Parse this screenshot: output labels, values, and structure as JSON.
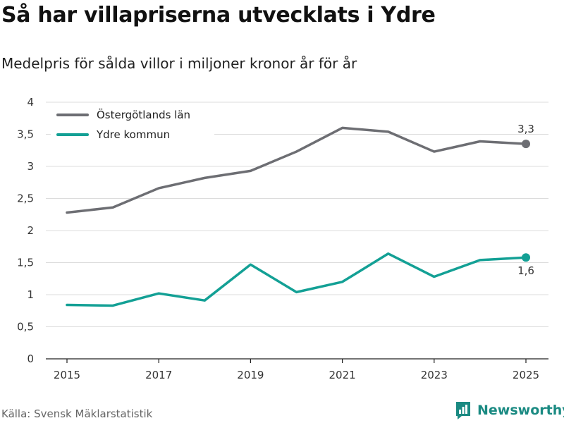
{
  "header": {
    "title": "Så har villapriserna utvecklats i Ydre",
    "subtitle": "Medelpris för sålda villor i miljoner kronor år för år"
  },
  "footer": {
    "source": "Källa: Svensk Mäklarstatistik",
    "brand": "Newsworthy",
    "brand_icon": "newsworthy-logo-icon",
    "brand_color": "#1a8a82"
  },
  "chart_data": {
    "type": "line",
    "title": "Så har villapriserna utvecklats i Ydre",
    "subtitle": "Medelpris för sålda villor i miljoner kronor år för år",
    "xlabel": "",
    "ylabel": "",
    "x": [
      2015,
      2016,
      2017,
      2018,
      2019,
      2020,
      2021,
      2022,
      2023,
      2024,
      2025
    ],
    "x_ticks": [
      "2015",
      "2017",
      "2019",
      "2021",
      "2023",
      "2025"
    ],
    "ylim": [
      0,
      4
    ],
    "y_ticks": [
      "0",
      "0,5",
      "1",
      "1,5",
      "2",
      "2,5",
      "3",
      "3,5",
      "4"
    ],
    "grid": true,
    "legend_position": "top-left",
    "series": [
      {
        "name": "Östergötlands län",
        "color": "#6d6e73",
        "values": [
          2.28,
          2.36,
          2.66,
          2.82,
          2.93,
          3.23,
          3.6,
          3.54,
          3.23,
          3.39,
          3.35
        ],
        "end_label": "3,3"
      },
      {
        "name": "Ydre kommun",
        "color": "#13a095",
        "values": [
          0.84,
          0.83,
          1.02,
          0.91,
          1.47,
          1.04,
          1.2,
          1.64,
          1.28,
          1.54,
          1.58
        ],
        "end_label": "1,6"
      }
    ]
  }
}
